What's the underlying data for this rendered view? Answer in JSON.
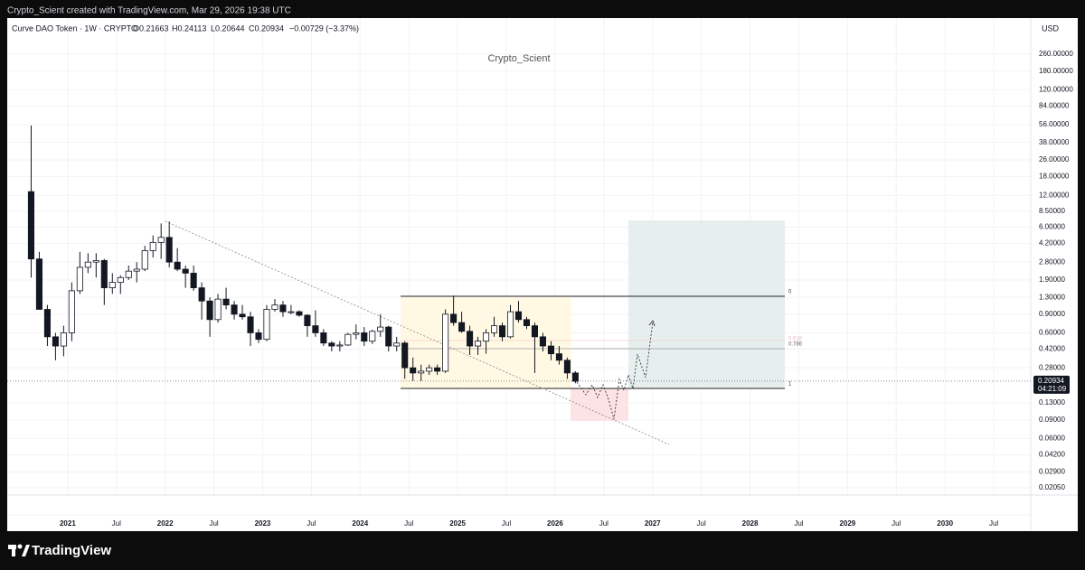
{
  "header": "Crypto_Scient created with TradingView.com, Mar 29, 2026 19:38 UTC",
  "brand": "TradingView",
  "chart_data": {
    "type": "candlestick",
    "legend": {
      "symbol": "Curve DAO Token · 1W · CRYPTO",
      "open": "O0.21663",
      "high": "H0.24113",
      "low": "L0.20644",
      "close": "C0.20934",
      "change": "−0.00729 (−3.37%)"
    },
    "currency": "USD",
    "watermark": "Crypto_Scient",
    "annotations": [
      "0",
      "0.618",
      "0.786",
      "1"
    ],
    "log_scale": true,
    "grid": true,
    "up_color": "#ffffff",
    "down_color": "#131722",
    "ylim": [
      0.0175,
      571
    ],
    "yticks": [
      {
        "value": 260,
        "label": "260.00000"
      },
      {
        "value": 180,
        "label": "180.00000"
      },
      {
        "value": 120,
        "label": "120.00000"
      },
      {
        "value": 84,
        "label": "84.00000"
      },
      {
        "value": 56,
        "label": "56.00000"
      },
      {
        "value": 38,
        "label": "38.00000"
      },
      {
        "value": 26,
        "label": "26.00000"
      },
      {
        "value": 18,
        "label": "18.00000"
      },
      {
        "value": 12,
        "label": "12.00000"
      },
      {
        "value": 8.5,
        "label": "8.50000"
      },
      {
        "value": 6,
        "label": "6.00000"
      },
      {
        "value": 4.2,
        "label": "4.20000"
      },
      {
        "value": 2.8,
        "label": "2.80000"
      },
      {
        "value": 1.9,
        "label": "1.90000"
      },
      {
        "value": 1.3,
        "label": "1.30000"
      },
      {
        "value": 0.9,
        "label": "0.90000"
      },
      {
        "value": 0.6,
        "label": "0.60000"
      },
      {
        "value": 0.42,
        "label": "0.42000"
      },
      {
        "value": 0.28,
        "label": "0.28000"
      },
      {
        "value": 0.13,
        "label": "0.13000"
      },
      {
        "value": 0.09,
        "label": "0.09000"
      },
      {
        "value": 0.06,
        "label": "0.06000"
      },
      {
        "value": 0.042,
        "label": "0.04200"
      },
      {
        "value": 0.029,
        "label": "0.02900"
      },
      {
        "value": 0.0205,
        "label": "0.02050"
      }
    ],
    "last_price": 0.20934,
    "countdown": "04:21:09",
    "xlim": [
      "2020-05",
      "2030-11"
    ],
    "xticks": [
      {
        "value": "2021-01",
        "label": "2021"
      },
      {
        "value": "2021-07",
        "label": "Jul"
      },
      {
        "value": "2022-01",
        "label": "2022"
      },
      {
        "value": "2022-07",
        "label": "Jul"
      },
      {
        "value": "2023-01",
        "label": "2023"
      },
      {
        "value": "2023-07",
        "label": "Jul"
      },
      {
        "value": "2024-01",
        "label": "2024"
      },
      {
        "value": "2024-07",
        "label": "Jul"
      },
      {
        "value": "2025-01",
        "label": "2025"
      },
      {
        "value": "2025-07",
        "label": "Jul"
      },
      {
        "value": "2026-01",
        "label": "2026"
      },
      {
        "value": "2026-07",
        "label": "Jul"
      },
      {
        "value": "2027-01",
        "label": "2027"
      },
      {
        "value": "2027-07",
        "label": "Jul"
      },
      {
        "value": "2028-01",
        "label": "2028"
      },
      {
        "value": "2028-07",
        "label": "Jul"
      },
      {
        "value": "2029-01",
        "label": "2029"
      },
      {
        "value": "2029-07",
        "label": "Jul"
      },
      {
        "value": "2030-01",
        "label": "2030"
      },
      {
        "value": "2030-07",
        "label": "Jul"
      }
    ],
    "x": [
      "2020-08",
      "2020-09",
      "2020-10",
      "2020-11",
      "2020-12",
      "2021-01",
      "2021-02",
      "2021-03",
      "2021-04",
      "2021-05",
      "2021-06",
      "2021-07",
      "2021-08",
      "2021-09",
      "2021-10",
      "2021-11",
      "2021-12",
      "2022-01",
      "2022-02",
      "2022-03",
      "2022-04",
      "2022-05",
      "2022-06",
      "2022-07",
      "2022-08",
      "2022-09",
      "2022-10",
      "2022-11",
      "2022-12",
      "2023-01",
      "2023-02",
      "2023-03",
      "2023-04",
      "2023-05",
      "2023-06",
      "2023-07",
      "2023-08",
      "2023-09",
      "2023-10",
      "2023-11",
      "2023-12",
      "2024-01",
      "2024-02",
      "2024-03",
      "2024-04",
      "2024-05",
      "2024-06",
      "2024-07",
      "2024-08",
      "2024-09",
      "2024-10",
      "2024-11",
      "2024-12",
      "2025-01",
      "2025-02",
      "2025-03",
      "2025-04",
      "2025-05",
      "2025-06",
      "2025-07",
      "2025-08",
      "2025-09",
      "2025-10",
      "2025-11",
      "2025-12",
      "2026-01",
      "2026-02",
      "2026-03"
    ],
    "open": [
      13,
      3.0,
      1.0,
      0.55,
      0.45,
      0.6,
      1.5,
      2.5,
      2.8,
      2.9,
      1.6,
      1.8,
      2.0,
      2.3,
      2.4,
      3.6,
      4.3,
      4.8,
      2.8,
      2.4,
      2.2,
      1.6,
      1.2,
      0.8,
      1.25,
      1.1,
      0.9,
      0.85,
      0.6,
      0.52,
      1.0,
      1.1,
      0.95,
      0.95,
      0.88,
      0.7,
      0.6,
      0.48,
      0.45,
      0.46,
      0.58,
      0.6,
      0.5,
      0.62,
      0.68,
      0.45,
      0.48,
      0.28,
      0.25,
      0.26,
      0.28,
      0.26,
      0.9,
      0.75,
      0.62,
      0.45,
      0.5,
      0.6,
      0.7,
      0.55,
      0.95,
      0.8,
      0.7,
      0.55,
      0.45,
      0.38,
      0.33,
      0.25
    ],
    "high": [
      55,
      3.5,
      1.1,
      0.6,
      0.7,
      1.8,
      3.5,
      3.4,
      3.4,
      3.0,
      2.2,
      2.1,
      2.6,
      2.8,
      4.0,
      5.0,
      6.5,
      6.8,
      3.8,
      2.6,
      2.6,
      1.8,
      1.3,
      1.4,
      1.6,
      1.2,
      1.1,
      0.95,
      0.65,
      1.1,
      1.25,
      1.2,
      1.1,
      0.98,
      0.9,
      0.98,
      0.65,
      0.5,
      0.5,
      0.6,
      0.72,
      0.68,
      0.64,
      0.9,
      0.7,
      0.55,
      0.5,
      0.35,
      0.3,
      0.3,
      0.3,
      1.0,
      1.35,
      0.95,
      0.7,
      0.55,
      0.65,
      0.85,
      0.75,
      1.1,
      1.2,
      0.85,
      0.75,
      0.6,
      0.5,
      0.45,
      0.35,
      0.26
    ],
    "low": [
      2.0,
      1.0,
      0.45,
      0.33,
      0.36,
      0.5,
      1.4,
      2.2,
      2.0,
      1.1,
      1.4,
      1.4,
      1.9,
      1.8,
      2.3,
      3.1,
      3.0,
      2.5,
      2.3,
      1.6,
      1.5,
      0.8,
      0.55,
      0.75,
      1.0,
      0.8,
      0.8,
      0.45,
      0.48,
      0.5,
      0.95,
      0.85,
      0.9,
      0.85,
      0.55,
      0.55,
      0.45,
      0.4,
      0.4,
      0.45,
      0.52,
      0.45,
      0.47,
      0.55,
      0.4,
      0.4,
      0.22,
      0.21,
      0.21,
      0.24,
      0.24,
      0.25,
      0.7,
      0.6,
      0.37,
      0.37,
      0.38,
      0.55,
      0.5,
      0.53,
      0.75,
      0.65,
      0.25,
      0.4,
      0.33,
      0.3,
      0.22,
      0.2
    ],
    "close": [
      3.0,
      1.0,
      0.55,
      0.45,
      0.6,
      1.5,
      2.5,
      2.8,
      2.9,
      1.6,
      1.8,
      2.0,
      2.3,
      2.4,
      3.6,
      4.3,
      4.8,
      2.8,
      2.4,
      2.2,
      1.6,
      1.2,
      0.8,
      1.25,
      1.1,
      0.9,
      0.85,
      0.6,
      0.52,
      1.0,
      1.1,
      0.95,
      0.95,
      0.88,
      0.7,
      0.6,
      0.48,
      0.45,
      0.46,
      0.58,
      0.6,
      0.5,
      0.62,
      0.68,
      0.45,
      0.48,
      0.28,
      0.25,
      0.26,
      0.28,
      0.26,
      0.9,
      0.75,
      0.62,
      0.45,
      0.5,
      0.6,
      0.7,
      0.55,
      0.95,
      0.8,
      0.7,
      0.55,
      0.45,
      0.38,
      0.33,
      0.25,
      0.209
    ]
  }
}
